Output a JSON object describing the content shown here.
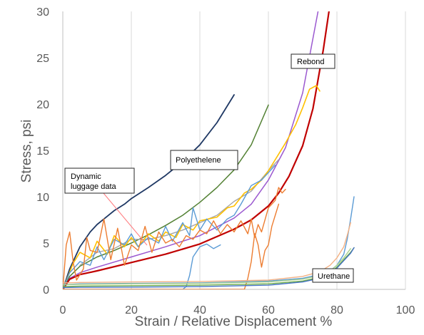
{
  "chart_data": {
    "type": "line",
    "title": "",
    "xlabel": "Strain / Relative Displacement %",
    "ylabel": "Stress, psi",
    "xlim": [
      0,
      100
    ],
    "ylim": [
      0,
      30
    ],
    "xticks": [
      0,
      20,
      40,
      60,
      80,
      100
    ],
    "yticks": [
      0,
      5,
      10,
      15,
      20,
      25,
      30
    ],
    "grid": "vertical",
    "legend": "none",
    "series": [
      {
        "color": "#1f3864",
        "width": 1.8,
        "x": [
          0,
          2,
          5,
          8,
          10,
          13,
          15,
          18,
          20,
          25,
          30,
          35,
          40,
          45,
          50
        ],
        "y": [
          0,
          2.2,
          4.6,
          6.2,
          7.0,
          7.9,
          8.5,
          9.2,
          9.8,
          11.0,
          12.3,
          13.8,
          15.6,
          18.0,
          21.0
        ]
      },
      {
        "color": "#548235",
        "width": 1.5,
        "x": [
          0,
          2,
          5,
          10,
          15,
          20,
          25,
          30,
          35,
          40,
          45,
          50,
          55,
          60
        ],
        "y": [
          0,
          1.4,
          2.5,
          3.5,
          4.2,
          5.0,
          5.9,
          6.9,
          8.0,
          9.4,
          11.0,
          12.9,
          15.6,
          19.9
        ]
      },
      {
        "color": "#9b59d0",
        "width": 1.5,
        "x": [
          0,
          2,
          5,
          10,
          20,
          30,
          40,
          50,
          55,
          60,
          65,
          70,
          75
        ],
        "y": [
          0,
          1.2,
          1.8,
          2.4,
          3.5,
          4.6,
          5.8,
          7.7,
          9.2,
          11.8,
          15.3,
          21.2,
          31.0
        ]
      },
      {
        "color": "#c00000",
        "width": 2.2,
        "x": [
          0,
          2,
          5,
          10,
          20,
          30,
          40,
          50,
          55,
          60,
          63,
          66,
          70,
          73,
          76,
          78
        ],
        "y": [
          0,
          1.1,
          1.6,
          2.0,
          2.9,
          3.8,
          4.9,
          6.5,
          7.5,
          9.0,
          10.4,
          12.2,
          15.5,
          19.5,
          25.8,
          30.8
        ]
      },
      {
        "color": "#a5a5a5",
        "width": 1.4,
        "x": [
          5,
          10,
          15,
          20,
          25,
          30,
          35,
          40,
          45,
          50,
          55,
          60,
          63
        ],
        "y": [
          2.6,
          4.0,
          4.4,
          5.4,
          5.4,
          5.8,
          6.4,
          7.2,
          8.0,
          9.5,
          10.6,
          12.8,
          14.0
        ]
      },
      {
        "color": "#ffc000",
        "width": 1.6,
        "x": [
          0,
          3,
          5,
          8,
          10,
          13,
          15,
          18,
          20,
          22,
          25,
          28,
          30,
          33,
          35,
          38,
          40,
          45,
          48,
          50,
          53,
          55,
          58,
          60,
          63,
          65,
          68,
          70,
          72,
          74,
          75
        ],
        "y": [
          0,
          2.8,
          4.0,
          3.4,
          5.2,
          3.8,
          5.8,
          4.6,
          5.6,
          4.6,
          6.0,
          5.2,
          6.2,
          5.6,
          7.0,
          6.4,
          7.4,
          7.8,
          8.8,
          9.0,
          10.4,
          10.8,
          11.8,
          12.8,
          14.6,
          15.8,
          17.8,
          19.6,
          21.6,
          22.0,
          21.4
        ]
      },
      {
        "color": "#5b9bd5",
        "width": 1.4,
        "x": [
          0,
          2,
          5,
          8,
          10,
          12,
          15,
          18,
          20,
          22,
          25,
          28,
          30,
          32,
          35,
          37,
          38,
          40,
          42,
          45,
          48,
          50,
          52,
          55,
          58,
          60,
          62
        ],
        "y": [
          0,
          1.8,
          3.0,
          2.6,
          4.6,
          3.2,
          5.4,
          4.8,
          6.0,
          4.6,
          5.6,
          5.0,
          6.8,
          5.2,
          7.2,
          5.8,
          8.8,
          6.4,
          7.6,
          6.4,
          7.6,
          8.0,
          9.2,
          11.2,
          11.8,
          12.6,
          13.4
        ]
      },
      {
        "color": "#ed7d31",
        "width": 1.4,
        "x": [
          0,
          1,
          2,
          3,
          4,
          6,
          7,
          8,
          10,
          12,
          14,
          16,
          18,
          20,
          22,
          24,
          26,
          28,
          30,
          32,
          34,
          36,
          38,
          40,
          42,
          44,
          46,
          48,
          50,
          52,
          54,
          55,
          56,
          57,
          58,
          60,
          62,
          63,
          64,
          65
        ],
        "y": [
          0,
          4.8,
          6.2,
          3.0,
          1.0,
          2.2,
          5.6,
          4.2,
          4.0,
          7.6,
          3.2,
          6.6,
          2.6,
          4.8,
          4.2,
          6.8,
          4.0,
          6.2,
          5.0,
          5.4,
          4.6,
          5.8,
          5.4,
          6.4,
          6.0,
          7.4,
          6.0,
          7.0,
          6.2,
          7.4,
          6.0,
          7.6,
          5.6,
          7.0,
          6.2,
          8.8,
          9.6,
          11.0,
          10.4,
          10.8
        ]
      },
      {
        "color": "#5b9bd5",
        "width": 1.4,
        "x": [
          0,
          35,
          36,
          37,
          38,
          40,
          42,
          44,
          46
        ],
        "y": [
          0,
          0,
          0.3,
          1.5,
          3.5,
          4.6,
          4.9,
          4.4,
          4.8
        ]
      },
      {
        "color": "#ed7d31",
        "width": 1.4,
        "x": [
          0,
          53,
          54,
          55,
          56,
          57,
          58,
          59,
          60,
          61,
          62,
          63
        ],
        "y": [
          0,
          0,
          1.2,
          3.0,
          6.0,
          4.8,
          2.4,
          4.2,
          4.8,
          6.8,
          8.0,
          9.2
        ]
      },
      {
        "color": "#5b9bd5",
        "width": 1.4,
        "x": [
          0,
          5,
          20,
          40,
          60,
          70,
          75,
          78,
          80,
          82,
          83,
          84,
          85
        ],
        "y": [
          0.5,
          0.6,
          0.65,
          0.7,
          0.9,
          1.2,
          1.6,
          2.0,
          2.6,
          3.8,
          5.4,
          7.6,
          10.0
        ]
      },
      {
        "color": "#f4b183",
        "width": 1.4,
        "x": [
          0,
          5,
          20,
          40,
          60,
          70,
          75,
          78,
          80,
          82,
          83,
          84
        ],
        "y": [
          0.7,
          0.75,
          0.8,
          0.85,
          1.0,
          1.4,
          1.9,
          2.6,
          3.4,
          4.6,
          5.8,
          7.2
        ]
      },
      {
        "color": "#a9d18e",
        "width": 1.4,
        "x": [
          0,
          5,
          20,
          40,
          60,
          70,
          75,
          78,
          80,
          82,
          84
        ],
        "y": [
          0.5,
          0.55,
          0.6,
          0.65,
          0.8,
          1.1,
          1.5,
          2.0,
          2.6,
          3.4,
          4.4
        ]
      },
      {
        "color": "#70ad47",
        "width": 1.4,
        "x": [
          0,
          5,
          20,
          40,
          60,
          70,
          75,
          78,
          80,
          82,
          84,
          85
        ],
        "y": [
          0.3,
          0.35,
          0.4,
          0.45,
          0.6,
          0.9,
          1.3,
          1.8,
          2.4,
          3.2,
          4.0,
          4.5
        ]
      },
      {
        "color": "#4472c4",
        "width": 1.4,
        "x": [
          0,
          5,
          20,
          40,
          60,
          70,
          75,
          78,
          80,
          82,
          84,
          85
        ],
        "y": [
          0.2,
          0.22,
          0.25,
          0.3,
          0.45,
          0.8,
          1.2,
          1.7,
          2.3,
          3.1,
          3.9,
          4.5
        ]
      }
    ],
    "annotations": [
      {
        "text": "Rebond"
      },
      {
        "text": "Polyethelene"
      },
      {
        "text": "Dynamic\nluggage data"
      },
      {
        "text": "Urethane"
      }
    ]
  }
}
